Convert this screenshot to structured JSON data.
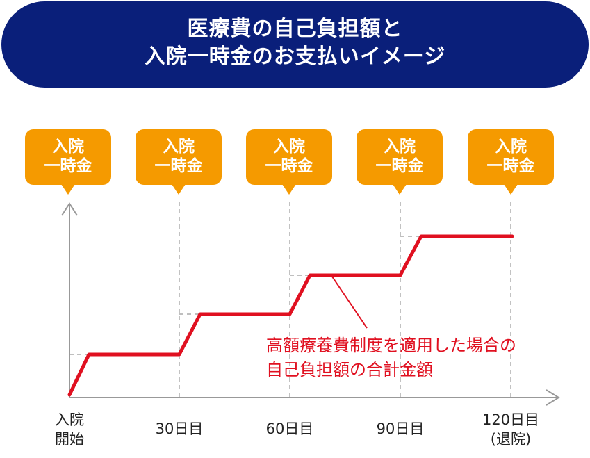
{
  "title": {
    "line1": "医療費の自己負担額と",
    "line2": "入院一時金のお支払いイメージ"
  },
  "badges": [
    {
      "line1": "入院",
      "line2": "一時金"
    },
    {
      "line1": "入院",
      "line2": "一時金"
    },
    {
      "line1": "入院",
      "line2": "一時金"
    },
    {
      "line1": "入院",
      "line2": "一時金"
    },
    {
      "line1": "入院",
      "line2": "一時金"
    }
  ],
  "x_labels": [
    {
      "line1": "入院",
      "line2": "開始"
    },
    {
      "line1": "30日目",
      "line2": ""
    },
    {
      "line1": "60日目",
      "line2": ""
    },
    {
      "line1": "90日目",
      "line2": ""
    },
    {
      "line1": "120日目",
      "line2": "(退院)"
    }
  ],
  "annotation": {
    "line1": "高額療養費制度を適用した場合の",
    "line2": "自己負担額の合計金額"
  },
  "colors": {
    "banner": "#0a1f7a",
    "badge": "#f59a00",
    "line": "#e01020",
    "axis": "#999999"
  }
}
